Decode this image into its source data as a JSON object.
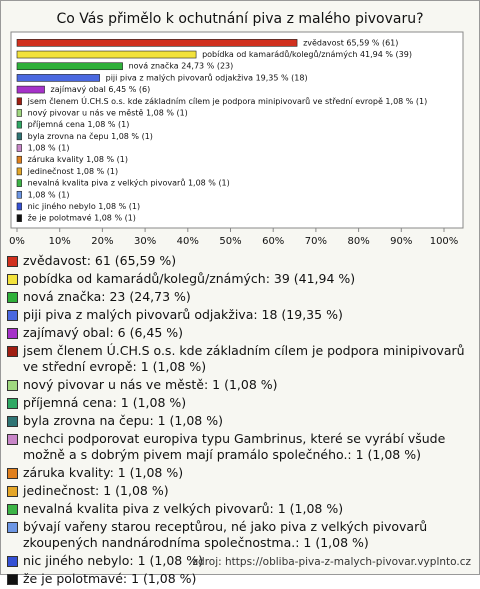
{
  "chart_data": {
    "type": "bar",
    "orientation": "horizontal",
    "title": "Co Vás přimělo k ochutnání piva z malého pivovaru?",
    "values": [
      65.59,
      41.94,
      24.73,
      19.35,
      6.45,
      1.08,
      1.08,
      1.08,
      1.08,
      1.08,
      1.08,
      1.08,
      1.08,
      1.08,
      1.08,
      1.08
    ],
    "value_labels": [
      "zvědavost 65,59 % (61)",
      "pobídka od kamarádů/kolegů/známých 41,94 % (39)",
      "nová značka 24,73 % (23)",
      "piji piva z malých pivovarů odjakživa 19,35 % (18)",
      "zajímavý obal 6,45 % (6)",
      "jsem členem Ú.CH.S o.s. kde základním cílem je podpora minipivovarů ve střední evropě 1,08 % (1)",
      "nový pivovar u nás ve městě 1,08 % (1)",
      "příjemná cena 1,08 % (1)",
      "byla zrovna na čepu 1,08 % (1)",
      "1,08 % (1)",
      "záruka kvality 1,08 % (1)",
      "jedinečnost 1,08 % (1)",
      "nevalná kvalita piva z velkých pivovarů 1,08 % (1)",
      "1,08 % (1)",
      "nic jiného nebylo 1,08 % (1)",
      "že je polotmavé 1,08 % (1)"
    ],
    "legend_labels": [
      "zvědavost: 61 (65,59 %)",
      "pobídka od kamarádů/kolegů/známých: 39 (41,94 %)",
      "nová značka: 23 (24,73 %)",
      "piji piva z malých pivovarů odjakživa: 18 (19,35 %)",
      "zajímavý obal: 6 (6,45 %)",
      "jsem členem Ú.CH.S o.s. kde základním cílem je podpora minipivovarů ve střední evropě: 1 (1,08 %)",
      "nový pivovar u nás ve městě: 1 (1,08 %)",
      "příjemná cena: 1 (1,08 %)",
      "byla zrovna na čepu: 1 (1,08 %)",
      "nechci podporovat europiva typu Gambrinus, které se vyrábí všude možně a s dobrým pivem mají pramálo společného.: 1 (1,08 %)",
      "záruka kvality: 1 (1,08 %)",
      "jedinečnost: 1 (1,08 %)",
      "nevalná kvalita piva z velkých pivovarů: 1 (1,08 %)",
      "bývají vařeny starou receptůrou, né jako piva z velkých pivovarů zkoupených nandnárodníma společnostma.: 1 (1,08 %)",
      "nic jiného nebylo: 1 (1,08 %)",
      "že je polotmavé: 1 (1,08 %)"
    ],
    "colors": [
      "#d0301e",
      "#f2e23c",
      "#2fb03a",
      "#4a68e0",
      "#a532c8",
      "#a01e12",
      "#a0d880",
      "#2fa864",
      "#2f7474",
      "#c886c8",
      "#e0801e",
      "#e4a628",
      "#3cb446",
      "#6c96e4",
      "#3450d4",
      "#111111"
    ],
    "xlim": [
      0,
      100
    ],
    "xticks": [
      {
        "value": 0,
        "label": "0%"
      },
      {
        "value": 10,
        "label": "10%"
      },
      {
        "value": 20,
        "label": "20%"
      },
      {
        "value": 30,
        "label": "30%"
      },
      {
        "value": 40,
        "label": "40%"
      },
      {
        "value": 50,
        "label": "50%"
      },
      {
        "value": 60,
        "label": "60%"
      },
      {
        "value": 70,
        "label": "70%"
      },
      {
        "value": 80,
        "label": "80%"
      },
      {
        "value": 90,
        "label": "90%"
      },
      {
        "value": 100,
        "label": "100%"
      }
    ],
    "source": "zdroj: https://obliba-piva-z-malych-pivovar.vyplnto.cz"
  }
}
